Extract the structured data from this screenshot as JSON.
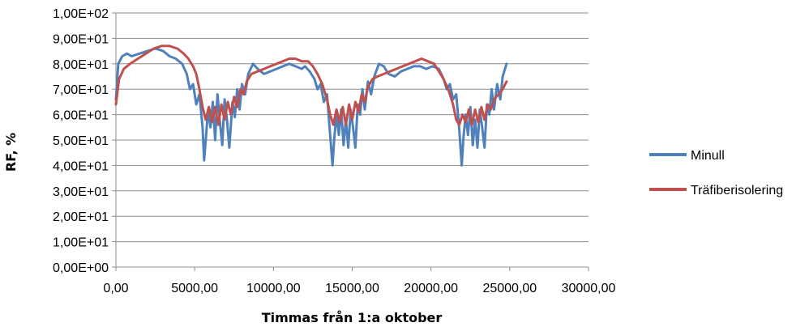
{
  "chart_data": {
    "type": "line",
    "title": "",
    "xlabel": "Timmas från 1:a oktober",
    "ylabel": "RF, %",
    "xlim": [
      0,
      30000
    ],
    "ylim": [
      0,
      100
    ],
    "x_ticks": [
      0,
      5000,
      10000,
      15000,
      20000,
      25000,
      30000
    ],
    "x_tick_labels": [
      "0,00",
      "5000,00",
      "10000,00",
      "15000,00",
      "20000,00",
      "25000,00",
      "30000,00"
    ],
    "y_ticks": [
      0,
      10,
      20,
      30,
      40,
      50,
      60,
      70,
      80,
      90,
      100
    ],
    "y_tick_labels": [
      "0,00E+00",
      "1,00E+01",
      "2,00E+01",
      "3,00E+01",
      "4,00E+01",
      "5,00E+01",
      "6,00E+01",
      "7,00E+01",
      "8,00E+01",
      "9,00E+01",
      "1,00E+02"
    ],
    "grid": "horizontal",
    "legend_position": "right",
    "series": [
      {
        "name": "Minull",
        "color": "#4f81bd",
        "points": [
          [
            0,
            66
          ],
          [
            150,
            80
          ],
          [
            400,
            83
          ],
          [
            700,
            84
          ],
          [
            1000,
            83
          ],
          [
            1500,
            84
          ],
          [
            2000,
            85
          ],
          [
            2500,
            86
          ],
          [
            3000,
            85
          ],
          [
            3400,
            83
          ],
          [
            3800,
            82
          ],
          [
            4200,
            80
          ],
          [
            4500,
            76
          ],
          [
            4700,
            70
          ],
          [
            4900,
            72
          ],
          [
            5100,
            64
          ],
          [
            5300,
            68
          ],
          [
            5500,
            55
          ],
          [
            5600,
            42
          ],
          [
            5700,
            50
          ],
          [
            5850,
            62
          ],
          [
            6000,
            55
          ],
          [
            6150,
            65
          ],
          [
            6300,
            50
          ],
          [
            6450,
            68
          ],
          [
            6600,
            57
          ],
          [
            6750,
            48
          ],
          [
            6900,
            66
          ],
          [
            7050,
            58
          ],
          [
            7200,
            47
          ],
          [
            7400,
            65
          ],
          [
            7550,
            59
          ],
          [
            7700,
            70
          ],
          [
            7850,
            62
          ],
          [
            8000,
            72
          ],
          [
            8200,
            68
          ],
          [
            8400,
            76
          ],
          [
            8700,
            80
          ],
          [
            9000,
            78
          ],
          [
            9400,
            76
          ],
          [
            9800,
            77
          ],
          [
            10200,
            78
          ],
          [
            10600,
            79
          ],
          [
            11000,
            80
          ],
          [
            11400,
            79
          ],
          [
            11800,
            78
          ],
          [
            12000,
            79
          ],
          [
            12300,
            77
          ],
          [
            12600,
            74
          ],
          [
            12800,
            70
          ],
          [
            13000,
            72
          ],
          [
            13200,
            65
          ],
          [
            13400,
            68
          ],
          [
            13600,
            52
          ],
          [
            13750,
            40
          ],
          [
            13850,
            50
          ],
          [
            14000,
            60
          ],
          [
            14150,
            52
          ],
          [
            14300,
            62
          ],
          [
            14450,
            48
          ],
          [
            14600,
            58
          ],
          [
            14750,
            47
          ],
          [
            14900,
            62
          ],
          [
            15050,
            55
          ],
          [
            15200,
            47
          ],
          [
            15350,
            64
          ],
          [
            15500,
            60
          ],
          [
            15650,
            70
          ],
          [
            15800,
            62
          ],
          [
            16000,
            73
          ],
          [
            16200,
            68
          ],
          [
            16400,
            75
          ],
          [
            16700,
            80
          ],
          [
            17000,
            79
          ],
          [
            17300,
            76
          ],
          [
            17700,
            75
          ],
          [
            18100,
            77
          ],
          [
            18500,
            78
          ],
          [
            18900,
            79
          ],
          [
            19300,
            79
          ],
          [
            19700,
            78
          ],
          [
            20100,
            79
          ],
          [
            20500,
            78
          ],
          [
            20800,
            74
          ],
          [
            21000,
            70
          ],
          [
            21200,
            72
          ],
          [
            21400,
            66
          ],
          [
            21600,
            68
          ],
          [
            21800,
            54
          ],
          [
            21950,
            40
          ],
          [
            22050,
            50
          ],
          [
            22200,
            60
          ],
          [
            22350,
            52
          ],
          [
            22500,
            63
          ],
          [
            22650,
            48
          ],
          [
            22800,
            58
          ],
          [
            22950,
            47
          ],
          [
            23100,
            62
          ],
          [
            23250,
            55
          ],
          [
            23400,
            47
          ],
          [
            23550,
            64
          ],
          [
            23700,
            60
          ],
          [
            23850,
            70
          ],
          [
            24000,
            62
          ],
          [
            24200,
            72
          ],
          [
            24400,
            66
          ],
          [
            24550,
            75
          ],
          [
            24700,
            78
          ],
          [
            24800,
            80
          ]
        ]
      },
      {
        "name": "Träfiberisolering",
        "color": "#c0504d",
        "points": [
          [
            0,
            64
          ],
          [
            200,
            74
          ],
          [
            500,
            78
          ],
          [
            900,
            80
          ],
          [
            1400,
            82
          ],
          [
            1900,
            84
          ],
          [
            2400,
            86
          ],
          [
            2900,
            87
          ],
          [
            3400,
            87
          ],
          [
            3900,
            86
          ],
          [
            4300,
            84
          ],
          [
            4600,
            82
          ],
          [
            4900,
            79
          ],
          [
            5100,
            76
          ],
          [
            5300,
            70
          ],
          [
            5500,
            63
          ],
          [
            5700,
            58
          ],
          [
            5900,
            63
          ],
          [
            6100,
            57
          ],
          [
            6300,
            63
          ],
          [
            6500,
            56
          ],
          [
            6700,
            64
          ],
          [
            6900,
            58
          ],
          [
            7100,
            65
          ],
          [
            7300,
            60
          ],
          [
            7500,
            67
          ],
          [
            7700,
            63
          ],
          [
            7900,
            70
          ],
          [
            8100,
            68
          ],
          [
            8300,
            73
          ],
          [
            8600,
            76
          ],
          [
            9000,
            77
          ],
          [
            9400,
            78
          ],
          [
            9800,
            79
          ],
          [
            10200,
            80
          ],
          [
            10600,
            81
          ],
          [
            11000,
            82
          ],
          [
            11400,
            82
          ],
          [
            11800,
            81
          ],
          [
            12200,
            81
          ],
          [
            12500,
            79
          ],
          [
            12800,
            76
          ],
          [
            13100,
            72
          ],
          [
            13400,
            66
          ],
          [
            13600,
            60
          ],
          [
            13800,
            56
          ],
          [
            14000,
            62
          ],
          [
            14200,
            57
          ],
          [
            14400,
            63
          ],
          [
            14600,
            56
          ],
          [
            14800,
            64
          ],
          [
            15000,
            58
          ],
          [
            15200,
            65
          ],
          [
            15400,
            61
          ],
          [
            15600,
            68
          ],
          [
            15800,
            65
          ],
          [
            16000,
            71
          ],
          [
            16300,
            74
          ],
          [
            16600,
            75
          ],
          [
            17000,
            76
          ],
          [
            17400,
            77
          ],
          [
            17800,
            78
          ],
          [
            18200,
            79
          ],
          [
            18600,
            80
          ],
          [
            19000,
            81
          ],
          [
            19400,
            82
          ],
          [
            19800,
            81
          ],
          [
            20200,
            80
          ],
          [
            20500,
            77
          ],
          [
            20800,
            74
          ],
          [
            21100,
            70
          ],
          [
            21400,
            64
          ],
          [
            21600,
            58
          ],
          [
            21800,
            56
          ],
          [
            22000,
            60
          ],
          [
            22200,
            57
          ],
          [
            22400,
            62
          ],
          [
            22600,
            56
          ],
          [
            22800,
            62
          ],
          [
            23000,
            57
          ],
          [
            23200,
            63
          ],
          [
            23400,
            58
          ],
          [
            23600,
            64
          ],
          [
            23800,
            62
          ],
          [
            24000,
            66
          ],
          [
            24300,
            68
          ],
          [
            24550,
            70
          ],
          [
            24800,
            73
          ]
        ]
      }
    ]
  }
}
